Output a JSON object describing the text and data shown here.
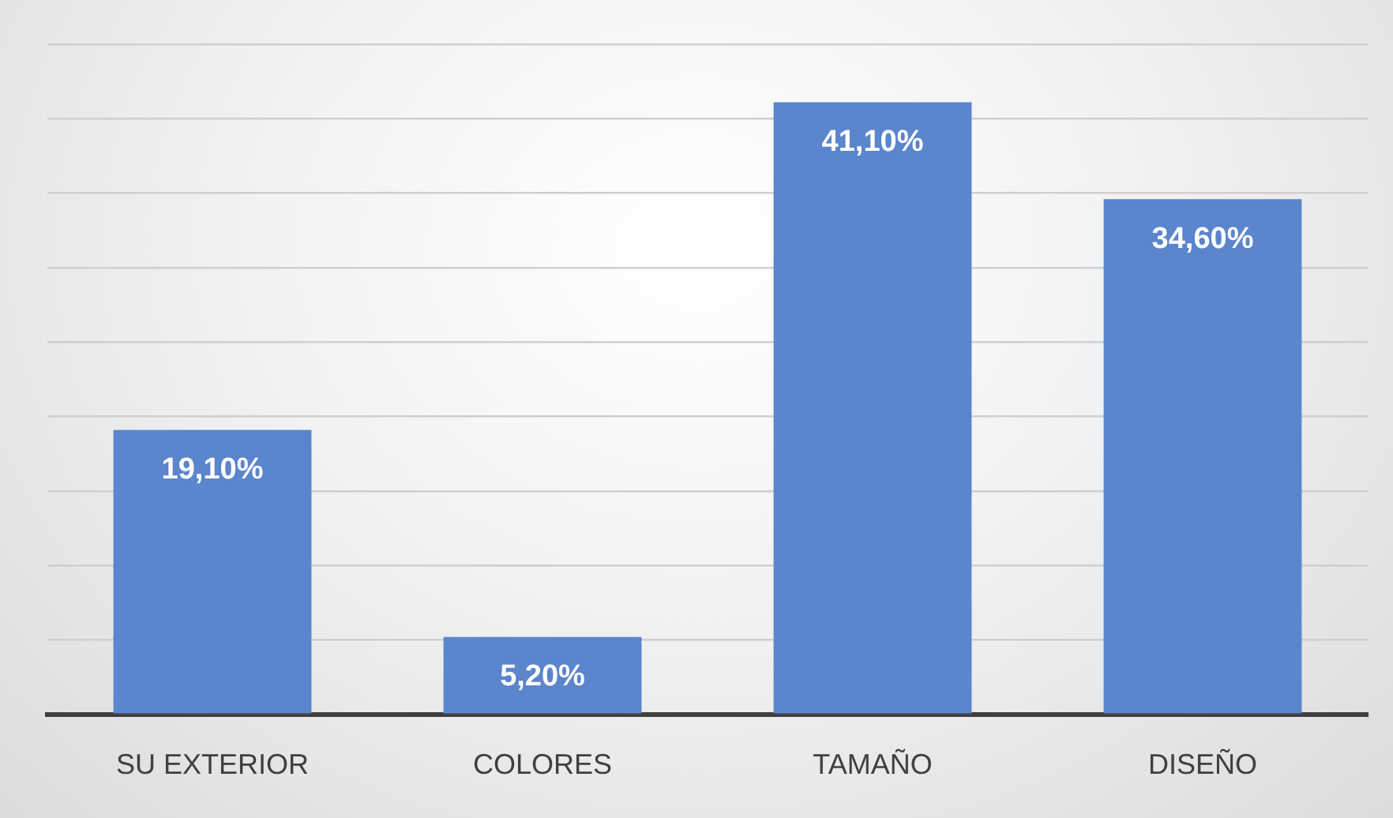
{
  "chart_data": {
    "type": "bar",
    "categories": [
      "SU EXTERIOR",
      "COLORES",
      "TAMAÑO",
      "DISEÑO"
    ],
    "values": [
      19.1,
      5.2,
      41.1,
      34.6
    ],
    "value_labels": [
      "19,10%",
      "5,20%",
      "41,10%",
      "34,60%"
    ],
    "color": "#5b85cc",
    "ylim": [
      0,
      45
    ],
    "yticks": [
      {
        "value": 0,
        "label": null
      },
      {
        "value": 5,
        "label": null
      },
      {
        "value": 10,
        "label": null
      },
      {
        "value": 15,
        "label": null
      },
      {
        "value": 20,
        "label": null
      },
      {
        "value": 25,
        "label": null
      },
      {
        "value": 30,
        "label": null
      },
      {
        "value": 35,
        "label": null
      },
      {
        "value": 40,
        "label": null
      },
      {
        "value": 45,
        "label": null
      }
    ],
    "grid": "y",
    "legend": false
  }
}
